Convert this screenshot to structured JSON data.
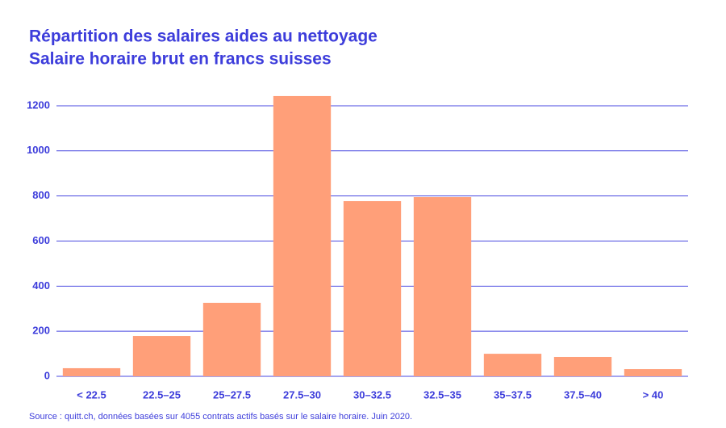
{
  "chart_data": {
    "type": "bar",
    "title": "Répartition des salaires aides au nettoyage",
    "subtitle": "Salaire horaire brut en francs suisses",
    "categories": [
      "< 22.5",
      "22.5–25",
      "25–27.5",
      "27.5–30",
      "30–32.5",
      "32.5–35",
      "35–37.5",
      "37.5–40",
      "> 40"
    ],
    "values": [
      36,
      179,
      326,
      1243,
      777,
      795,
      100,
      86,
      32
    ],
    "color": "#ff9f79",
    "ylim": [
      0,
      1300
    ],
    "yticks": [
      0,
      200,
      400,
      600,
      800,
      1000,
      1200
    ],
    "grid": true,
    "source": "Source : quitt.ch, données basées sur 4055 contrats actifs basés sur le salaire horaire. Juin 2020."
  }
}
